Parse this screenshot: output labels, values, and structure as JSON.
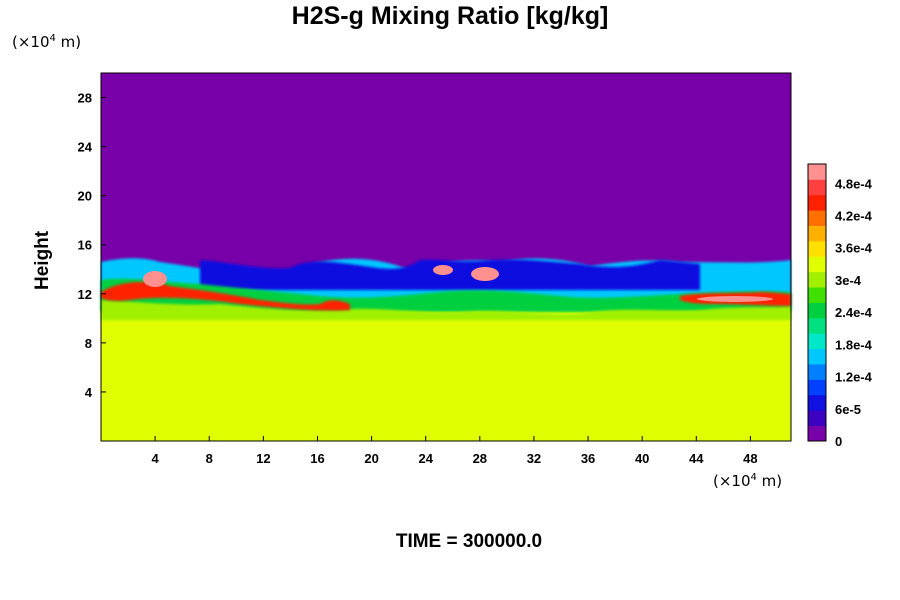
{
  "chart_data": {
    "type": "heatmap",
    "title": "H2S-g Mixing Ratio [kg/kg]",
    "ylabel": "Height",
    "xlabel": "",
    "x_unit_base": "(×10",
    "x_unit_exp": "4",
    "x_unit_tail": " m)",
    "y_unit_base": "(×10",
    "y_unit_exp": "4",
    "y_unit_tail": " m)",
    "xlim": [
      0,
      51
    ],
    "ylim": [
      0,
      30
    ],
    "x_ticks": [
      4,
      8,
      12,
      16,
      20,
      24,
      28,
      32,
      36,
      40,
      44,
      48
    ],
    "x_tick_labels": [
      "4",
      "8",
      "12",
      "16",
      "20",
      "24",
      "28",
      "32",
      "36",
      "40",
      "44",
      "48"
    ],
    "y_ticks": [
      4,
      8,
      12,
      16,
      20,
      24,
      28
    ],
    "y_tick_labels": [
      "4",
      "8",
      "12",
      "16",
      "20",
      "24",
      "28"
    ],
    "colorbar": {
      "min": 0,
      "max": 0.000516,
      "tick_values": [
        0,
        6e-05,
        0.00012,
        0.00018,
        0.00024,
        0.0003,
        0.00036,
        0.00042,
        0.00048
      ],
      "tick_labels": [
        "0",
        "6e-5",
        "1.2e-4",
        "1.8e-4",
        "2.4e-4",
        "3e-4",
        "3.6e-4",
        "4.2e-4",
        "4.8e-4"
      ],
      "colors": [
        "#7800a8",
        "#3c00c0",
        "#1010e0",
        "#0040ff",
        "#0080ff",
        "#00c8ff",
        "#00e8c8",
        "#00e080",
        "#00d040",
        "#40e000",
        "#a0f000",
        "#e0ff00",
        "#ffe000",
        "#ffb000",
        "#ff7000",
        "#ff2000",
        "#ff4040",
        "#ff9090"
      ]
    },
    "fields": {
      "upper_region": {
        "y_range": [
          15,
          30
        ],
        "value": 0
      },
      "lower_region": {
        "y_range": [
          0,
          11
        ],
        "value": 0.00034
      }
    },
    "time_label": "TIME = 300000.0"
  }
}
